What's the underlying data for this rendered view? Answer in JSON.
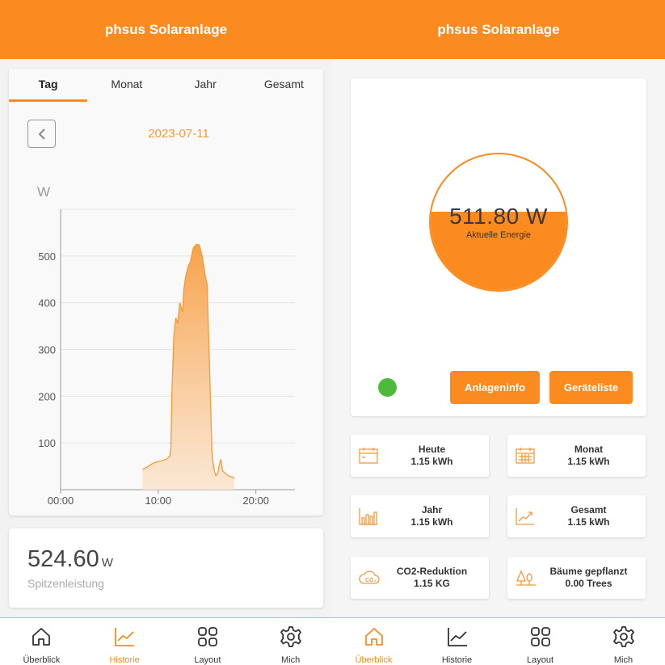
{
  "left": {
    "header_title": "phsus Solaranlage",
    "tabs": [
      "Tag",
      "Monat",
      "Jahr",
      "Gesamt"
    ],
    "date": "2023-07-11",
    "peak": {
      "value": "524.60",
      "unit": "W",
      "label": "Spitzenleistung"
    }
  },
  "right": {
    "header_title": "phsus Solaranlage",
    "current": {
      "value": "511.80 W",
      "label": "Aktuelle Energie",
      "fill_fraction": 0.58
    },
    "buttons": {
      "info": "Anlageninfo",
      "devices": "Geräteliste"
    },
    "status_color": "#4cbb3a",
    "stats": [
      {
        "title": "Heute",
        "value": "1.15 kWh",
        "icon": "calendar-day-icon"
      },
      {
        "title": "Monat",
        "value": "1.15 kWh",
        "icon": "calendar-month-icon"
      },
      {
        "title": "Jahr",
        "value": "1.15 kWh",
        "icon": "bar-chart-icon"
      },
      {
        "title": "Gesamt",
        "value": "1.15 kWh",
        "icon": "trend-chart-icon"
      },
      {
        "title": "CO2-Reduktion",
        "value": "1.15 KG",
        "icon": "co2-cloud-icon"
      },
      {
        "title": "Bäume gepflanzt",
        "value": "0.00 Trees",
        "icon": "trees-icon"
      }
    ]
  },
  "nav": {
    "left": [
      {
        "label": "Überblick",
        "icon": "home-icon",
        "active": false
      },
      {
        "label": "Historie",
        "icon": "chart-line-icon",
        "active": true
      },
      {
        "label": "Layout",
        "icon": "grid-icon",
        "active": false
      },
      {
        "label": "Mich",
        "icon": "gear-icon",
        "active": false
      }
    ],
    "right": [
      {
        "label": "Überblick",
        "icon": "home-icon",
        "active": true
      },
      {
        "label": "Historie",
        "icon": "chart-line-icon",
        "active": false
      },
      {
        "label": "Layout",
        "icon": "grid-icon",
        "active": false
      },
      {
        "label": "Mich",
        "icon": "gear-icon",
        "active": false
      }
    ]
  },
  "colors": {
    "accent": "#fb8b1e",
    "date": "#f39a3b"
  },
  "chart_data": {
    "type": "area",
    "ylabel": "W",
    "ylim": [
      0,
      600
    ],
    "yticks": [
      100,
      200,
      300,
      400,
      500
    ],
    "xticks": [
      "00:00",
      "10:00",
      "20:00"
    ],
    "xlim_hours": [
      0,
      24
    ],
    "series": [
      {
        "x": [
          8.4,
          8.8,
          9.2,
          9.6,
          10.0,
          10.4,
          10.9,
          11.2,
          11.3,
          11.4,
          11.6,
          11.8,
          12.0,
          12.2,
          12.5,
          12.6,
          12.75,
          12.9,
          13.1,
          13.3,
          13.6,
          13.9,
          14.2,
          14.5,
          14.8,
          15.0,
          15.2,
          15.5,
          15.6,
          15.75,
          15.9,
          16.1,
          16.2,
          16.4,
          16.6,
          17.0,
          17.4,
          17.8
        ],
        "y": [
          43,
          48,
          53,
          58,
          60,
          62,
          66,
          72,
          90,
          210,
          330,
          368,
          355,
          400,
          380,
          425,
          450,
          465,
          480,
          488,
          518,
          525,
          524,
          500,
          460,
          440,
          300,
          80,
          60,
          40,
          30,
          35,
          48,
          65,
          40,
          32,
          28,
          25
        ]
      }
    ]
  }
}
